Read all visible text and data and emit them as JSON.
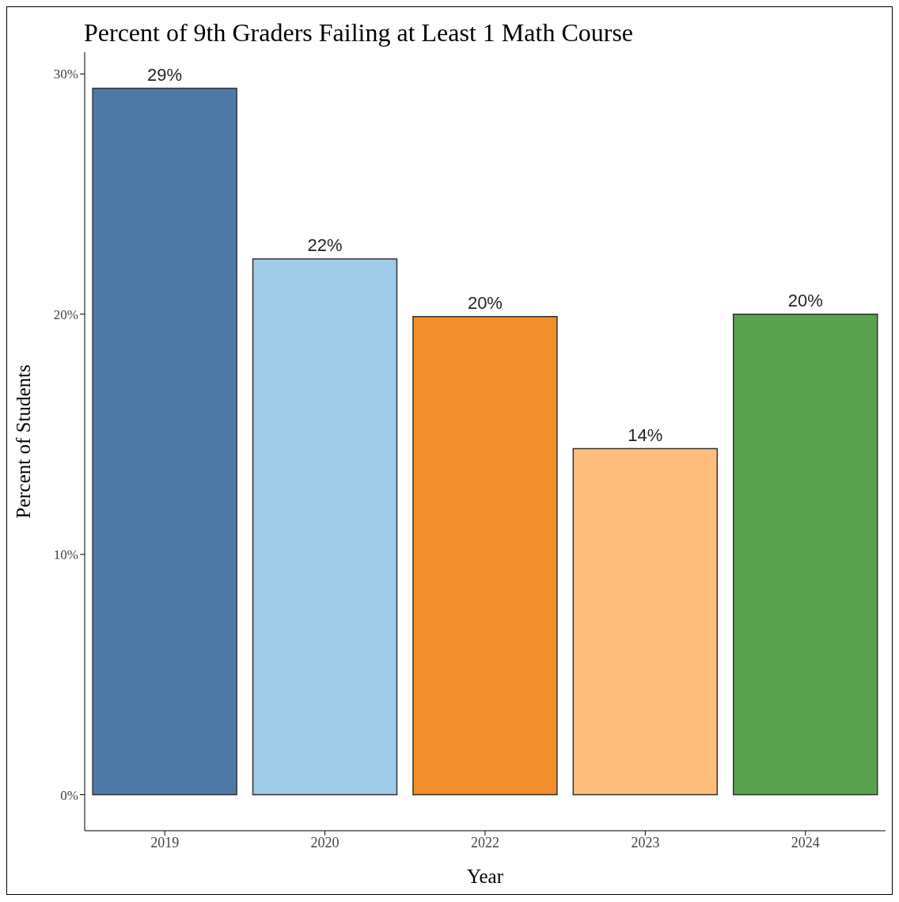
{
  "chart_data": {
    "type": "bar",
    "title": "Percent of 9th Graders Failing at Least 1 Math Course",
    "xlabel": "Year",
    "ylabel": "Percent of Students",
    "categories": [
      "2019",
      "2020",
      "2022",
      "2023",
      "2024"
    ],
    "values": [
      29.4,
      22.3,
      19.9,
      14.4,
      20.0
    ],
    "value_labels": [
      "29%",
      "22%",
      "20%",
      "14%",
      "20%"
    ],
    "colors": [
      "#4e79a7",
      "#a0cbe8",
      "#f28e2b",
      "#ffbe7d",
      "#59a14f"
    ],
    "ylim": [
      -1.5,
      30.9
    ],
    "yticks": [
      {
        "value": 0,
        "label": "0%"
      },
      {
        "value": 10,
        "label": "10%"
      },
      {
        "value": 20,
        "label": "20%"
      },
      {
        "value": 30,
        "label": "30%"
      }
    ],
    "grid": false
  }
}
